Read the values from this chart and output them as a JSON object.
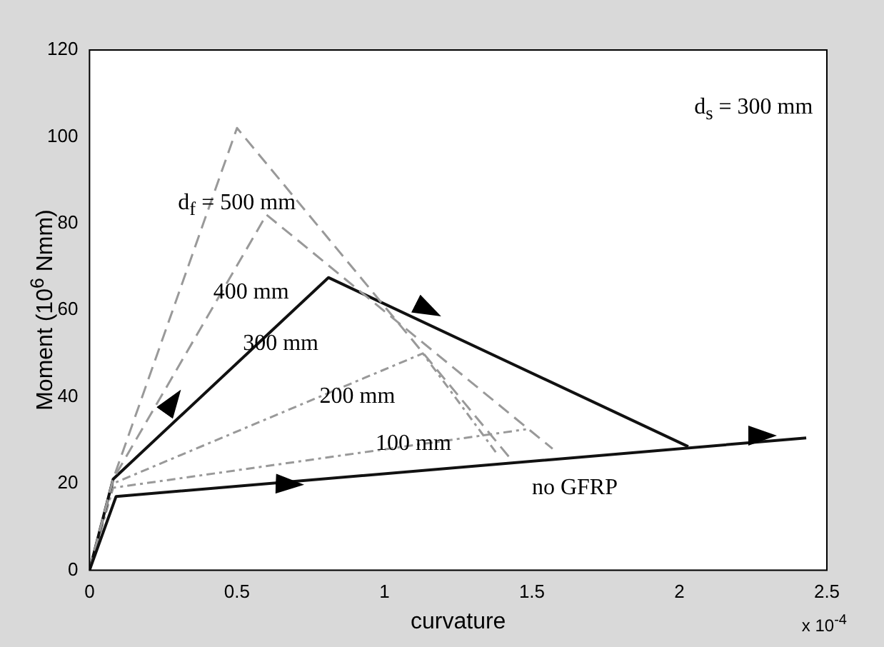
{
  "chart_data": {
    "type": "line",
    "xlabel": "curvature",
    "ylabel": "Moment (10$^{6}$ Nmm)",
    "xlim": [
      0,
      2.5
    ],
    "xticks": [
      0,
      0.5,
      1,
      1.5,
      2,
      2.5
    ],
    "ylim": [
      0,
      120
    ],
    "yticks": [
      0,
      20,
      40,
      60,
      80,
      100,
      120
    ],
    "grid": false,
    "legend": false,
    "marker": "none",
    "series": [
      {
        "color": "#111111",
        "line_style": "solid",
        "x": [
          0,
          0.09,
          2.43
        ],
        "values": [
          0,
          17,
          30.5
        ]
      },
      {
        "color": "#999999",
        "line_style": "dashed",
        "x": [
          0,
          0.08,
          0.5,
          1.43
        ],
        "values": [
          0,
          21,
          102,
          25.5
        ]
      },
      {
        "color": "#999999",
        "line_style": "dashed",
        "x": [
          0,
          0.08,
          0.6,
          1.57
        ],
        "values": [
          0,
          21,
          82,
          28
        ]
      },
      {
        "color": "#111111",
        "line_style": "solid",
        "x": [
          0,
          0.08,
          0.81,
          2.03
        ],
        "values": [
          0,
          21,
          67.5,
          28.5
        ]
      },
      {
        "color": "#999999",
        "line_style": "dotted",
        "x": [
          0,
          0.08,
          1.13,
          1.38
        ],
        "values": [
          0,
          20,
          50,
          27
        ]
      },
      {
        "color": "#999999",
        "line_style": "dotted",
        "x": [
          0,
          0.08,
          1.48
        ],
        "values": [
          0,
          19,
          32.5
        ]
      }
    ],
    "annotations": [
      "d$_{s}$ = 300 mm",
      "d$_{f}$ = 500 mm",
      "400 mm",
      "300 mm",
      "200 mm",
      "100 mm",
      "no GFRP",
      "x 10$^{-4}$"
    ]
  }
}
